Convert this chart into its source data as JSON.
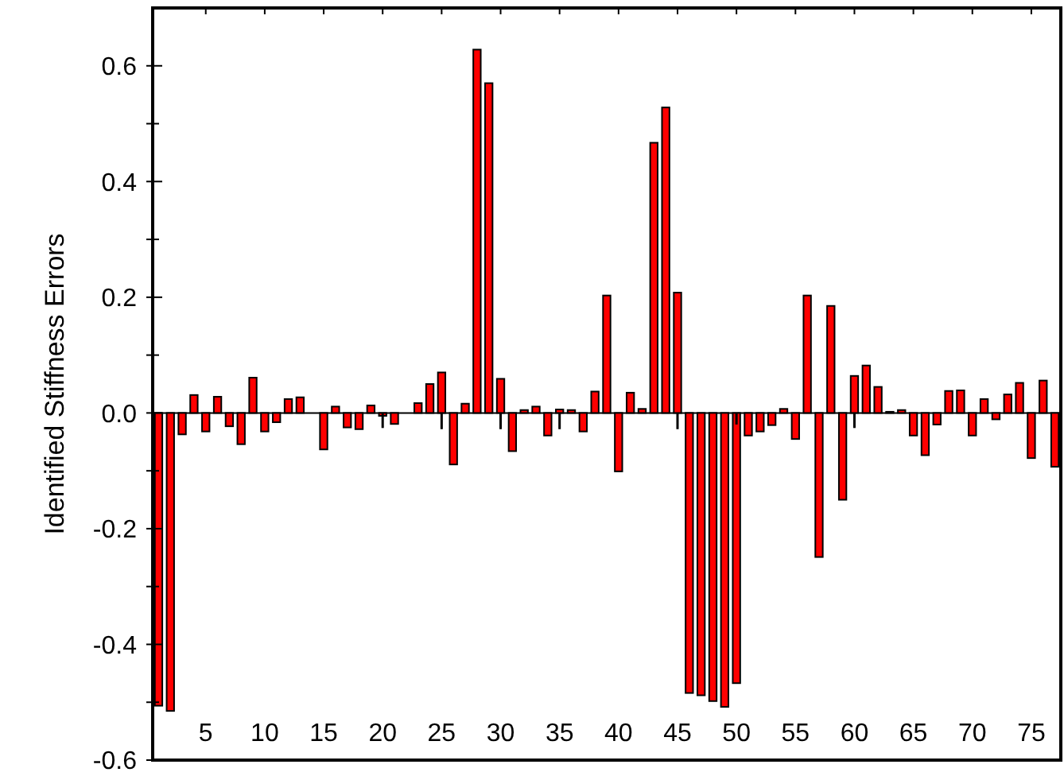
{
  "chart_data": {
    "type": "bar",
    "ylabel": "Identified Stiffness Errors",
    "x": [
      1,
      2,
      3,
      4,
      5,
      6,
      7,
      8,
      9,
      10,
      11,
      12,
      13,
      14,
      15,
      16,
      17,
      18,
      19,
      20,
      21,
      22,
      23,
      24,
      25,
      26,
      27,
      28,
      29,
      30,
      31,
      32,
      33,
      34,
      35,
      36,
      37,
      38,
      39,
      40,
      41,
      42,
      43,
      44,
      45,
      46,
      47,
      48,
      49,
      50,
      51,
      52,
      53,
      54,
      55,
      56,
      57,
      58,
      59,
      60,
      61,
      62,
      63,
      64,
      65,
      66,
      67,
      68,
      69,
      70,
      71,
      72,
      73,
      74,
      75,
      76,
      77
    ],
    "series": [
      {
        "color": "#ff0000",
        "values": [
          -0.506,
          -0.515,
          -0.037,
          0.031,
          -0.032,
          0.028,
          -0.023,
          -0.054,
          0.061,
          -0.032,
          -0.016,
          0.024,
          0.027,
          0,
          -0.063,
          0.011,
          -0.025,
          -0.028,
          0.013,
          -0.005,
          -0.019,
          0,
          0.017,
          0.05,
          0.07,
          -0.089,
          0.016,
          0.628,
          0.57,
          0.059,
          -0.066,
          0.005,
          0.011,
          -0.039,
          0.006,
          0.005,
          -0.032,
          0.037,
          0.203,
          -0.101,
          0.035,
          0.007,
          0.467,
          0.528,
          0.208,
          -0.484,
          -0.488,
          -0.498,
          -0.508,
          -0.467,
          -0.039,
          -0.032,
          -0.021,
          0.007,
          -0.045,
          0.203,
          -0.249,
          0.185,
          -0.15,
          0.064,
          0.082,
          0.045,
          0.002,
          0.005,
          -0.039,
          -0.073,
          -0.02,
          0.038,
          0.039,
          -0.039,
          0.024,
          -0.011,
          0.032,
          0.052,
          -0.078,
          0.056,
          -0.093
        ]
      },
      {
        "color": "#000000",
        "values": [
          null,
          null,
          null,
          null,
          null,
          null,
          null,
          null,
          null,
          null,
          null,
          null,
          null,
          null,
          null,
          null,
          null,
          null,
          null,
          -0.026,
          null,
          null,
          null,
          null,
          -0.028,
          null,
          null,
          null,
          null,
          -0.028,
          null,
          null,
          null,
          null,
          -0.028,
          null,
          null,
          null,
          null,
          null,
          null,
          null,
          null,
          null,
          -0.028,
          null,
          null,
          null,
          null,
          -0.02,
          null,
          null,
          null,
          null,
          null,
          null,
          null,
          null,
          null,
          -0.026,
          null,
          null,
          null,
          null,
          null,
          null,
          null,
          null,
          null,
          null,
          null,
          null,
          null,
          null,
          null,
          null,
          null
        ]
      }
    ],
    "xlim": [
      0.5,
      77.5
    ],
    "xticks": [
      5,
      10,
      15,
      20,
      25,
      30,
      35,
      40,
      45,
      50,
      55,
      60,
      65,
      70,
      75
    ],
    "ylim": [
      -0.6,
      0.7
    ],
    "yticks": [
      0.6,
      {
        "value": 0.5,
        "label": null
      },
      0.4,
      {
        "value": 0.3,
        "label": null
      },
      0.2,
      {
        "value": 0.1,
        "label": null
      },
      {
        "value": 0,
        "label": "0.0"
      },
      {
        "value": -0.1,
        "label": null
      },
      -0.2,
      {
        "value": -0.3,
        "label": null
      },
      -0.4,
      {
        "value": -0.5,
        "label": null
      },
      -0.6
    ],
    "ref_lines": [
      {
        "axis": "y",
        "value": 0,
        "color": "#000000"
      }
    ]
  }
}
